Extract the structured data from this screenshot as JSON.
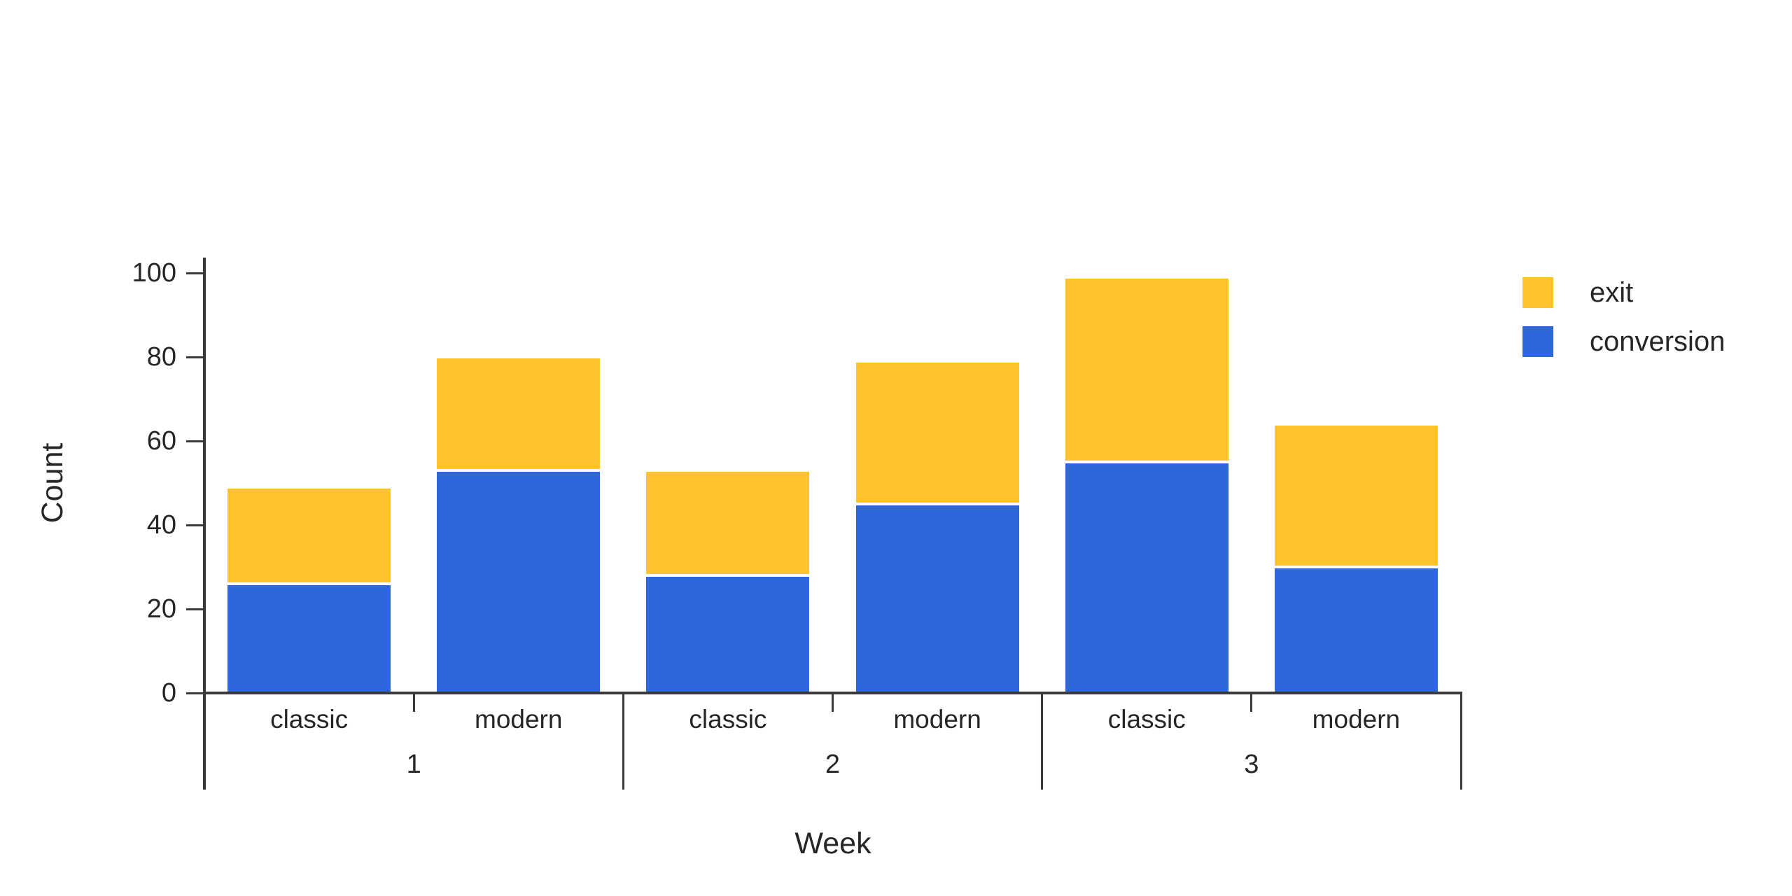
{
  "chart_data": {
    "type": "bar",
    "stacked": true,
    "title": "",
    "xlabel": "Week",
    "ylabel": "Count",
    "ylim": [
      0,
      100
    ],
    "ytick_step": 20,
    "ytick_labels": [
      "0",
      "20",
      "40",
      "60",
      "80",
      "100"
    ],
    "grid": false,
    "groups": [
      "1",
      "2",
      "3"
    ],
    "subcategories": [
      "classic",
      "modern"
    ],
    "categories": [
      {
        "week": "1",
        "style": "classic"
      },
      {
        "week": "1",
        "style": "modern"
      },
      {
        "week": "2",
        "style": "classic"
      },
      {
        "week": "2",
        "style": "modern"
      },
      {
        "week": "3",
        "style": "classic"
      },
      {
        "week": "3",
        "style": "modern"
      }
    ],
    "series": [
      {
        "name": "conversion",
        "color": "#2e66db",
        "values": [
          26,
          53,
          28,
          45,
          55,
          30
        ]
      },
      {
        "name": "exit",
        "color": "#ffc42d",
        "values": [
          23,
          27,
          25,
          34,
          44,
          34
        ]
      }
    ],
    "totals": [
      49,
      80,
      53,
      79,
      99,
      64
    ],
    "legend": {
      "position": "top-right",
      "items": [
        "exit",
        "conversion"
      ]
    }
  },
  "colors": {
    "background": "#ffffff",
    "axis": "#3a3a3a",
    "text": "#262626",
    "bar_edge": "#ffffff"
  }
}
